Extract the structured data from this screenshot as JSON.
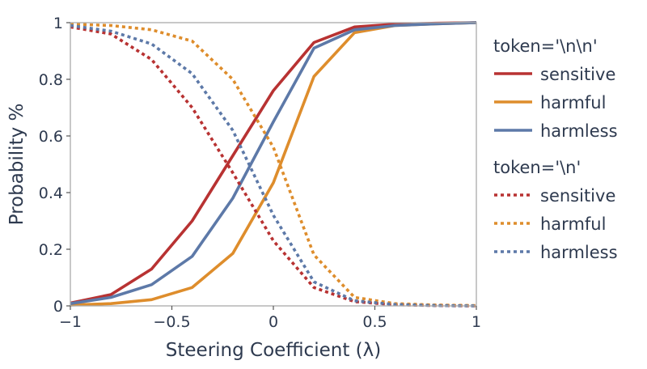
{
  "chart_data": {
    "type": "line",
    "xlabel": "Steering Coefficient (λ)",
    "ylabel": "Probability %",
    "xlim": [
      -1,
      1
    ],
    "ylim": [
      0,
      1
    ],
    "xticks": [
      -1,
      -0.5,
      0,
      0.5,
      1
    ],
    "xtick_labels": [
      "−1",
      "−0.5",
      "0",
      "0.5",
      "1"
    ],
    "yticks": [
      0,
      0.2,
      0.4,
      0.6,
      0.8,
      1
    ],
    "ytick_labels": [
      "0",
      "0.2",
      "0.4",
      "0.6",
      "0.8",
      "1"
    ],
    "grid": false,
    "legend_position": "right",
    "x": [
      -1,
      -0.8,
      -0.6,
      -0.4,
      -0.2,
      0,
      0.2,
      0.4,
      0.6,
      0.8,
      1
    ],
    "groups": [
      {
        "title": "token='\\n\\n'",
        "dash": "solid",
        "series": [
          {
            "name": "sensitive",
            "color": "#b83232",
            "values": [
              0.01,
              0.04,
              0.13,
              0.3,
              0.53,
              0.76,
              0.93,
              0.985,
              0.995,
              0.998,
              1.0
            ]
          },
          {
            "name": "harmful",
            "color": "#de8d2c",
            "values": [
              0.003,
              0.008,
              0.022,
              0.065,
              0.185,
              0.435,
              0.81,
              0.965,
              0.99,
              0.996,
              1.0
            ]
          },
          {
            "name": "harmless",
            "color": "#5d79a8",
            "values": [
              0.008,
              0.03,
              0.075,
              0.175,
              0.38,
              0.65,
              0.91,
              0.975,
              0.99,
              0.996,
              1.0
            ]
          }
        ]
      },
      {
        "title": "token='\\n'",
        "dash": "dotted",
        "series": [
          {
            "name": "sensitive",
            "color": "#b83232",
            "values": [
              0.985,
              0.96,
              0.87,
              0.7,
              0.47,
              0.23,
              0.065,
              0.015,
              0.004,
              0.001,
              0.0
            ]
          },
          {
            "name": "harmful",
            "color": "#de8d2c",
            "values": [
              0.995,
              0.99,
              0.975,
              0.935,
              0.8,
              0.56,
              0.18,
              0.03,
              0.008,
              0.003,
              0.001
            ]
          },
          {
            "name": "harmless",
            "color": "#5d79a8",
            "values": [
              0.99,
              0.97,
              0.925,
              0.82,
              0.62,
              0.32,
              0.085,
              0.018,
              0.005,
              0.001,
              0.0
            ]
          }
        ]
      }
    ]
  }
}
